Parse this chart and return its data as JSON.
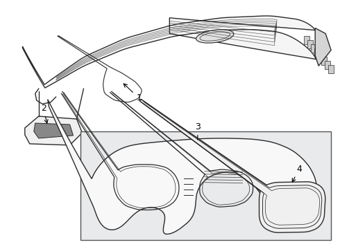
{
  "bg_color": "#ffffff",
  "line_color": "#2a2a2a",
  "box_bg": "#e8eaec",
  "label_color": "#000000",
  "figsize": [
    4.9,
    3.6
  ],
  "dpi": 100
}
